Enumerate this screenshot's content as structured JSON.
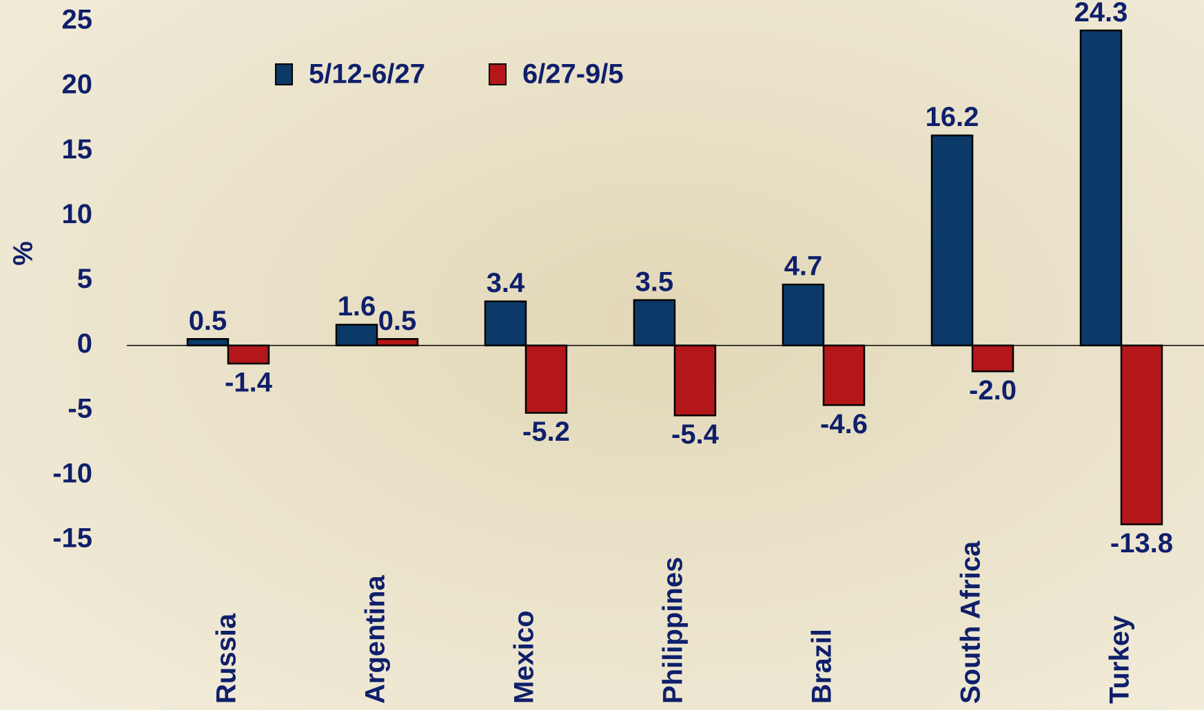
{
  "chart_data": {
    "type": "bar",
    "y_label": "%",
    "categories": [
      "Russia",
      "Argentina",
      "Mexico",
      "Philippines",
      "Brazil",
      "South Africa",
      "Turkey"
    ],
    "series": [
      {
        "name": "5/12-6/27",
        "color": "#0b3a68",
        "values": [
          0.5,
          1.6,
          3.4,
          3.5,
          4.7,
          16.2,
          24.3
        ],
        "value_labels": [
          "0.5",
          "1.6",
          "3.4",
          "3.5",
          "4.7",
          "16.2",
          "24.3"
        ]
      },
      {
        "name": "6/27-9/5",
        "color": "#b3171a",
        "values": [
          -1.4,
          0.5,
          -5.2,
          -5.4,
          -4.6,
          -2.0,
          -13.8
        ],
        "value_labels": [
          "-1.4",
          "0.5",
          "-5.2",
          "-5.4",
          "-4.6",
          "-2.0",
          "-13.8"
        ]
      }
    ],
    "ylim": [
      -15,
      25
    ],
    "yticks": [
      -15,
      -10,
      -5,
      0,
      5,
      10,
      15,
      20,
      25
    ]
  }
}
